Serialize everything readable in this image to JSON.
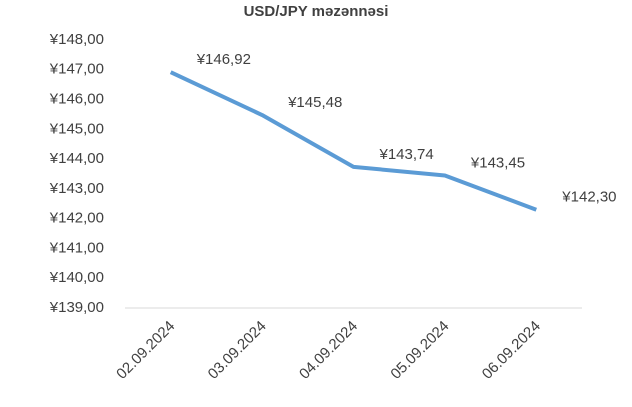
{
  "chart_data": {
    "type": "line",
    "title": "USD/JPY məzənnəsi",
    "categories": [
      "02.09.2024",
      "03.09.2024",
      "04.09.2024",
      "05.09.2024",
      "06.09.2024"
    ],
    "series": [
      {
        "name": "USD/JPY",
        "color": "#5b9bd5",
        "values": [
          146.92,
          145.48,
          143.74,
          143.45,
          142.3
        ],
        "value_labels": [
          "¥146,92",
          "¥145,48",
          "¥143,74",
          "¥143,45",
          "¥142,30"
        ]
      }
    ],
    "ylim": [
      139,
      148
    ],
    "yticks": [
      {
        "value": 139,
        "label": "¥139,00"
      },
      {
        "value": 140,
        "label": "¥140,00"
      },
      {
        "value": 141,
        "label": "¥141,00"
      },
      {
        "value": 142,
        "label": "¥142,00"
      },
      {
        "value": 143,
        "label": "¥143,00"
      },
      {
        "value": 144,
        "label": "¥144,00"
      },
      {
        "value": 145,
        "label": "¥145,00"
      },
      {
        "value": 146,
        "label": "¥146,00"
      },
      {
        "value": 147,
        "label": "¥147,00"
      },
      {
        "value": 148,
        "label": "¥148,00"
      }
    ],
    "grid": false
  }
}
